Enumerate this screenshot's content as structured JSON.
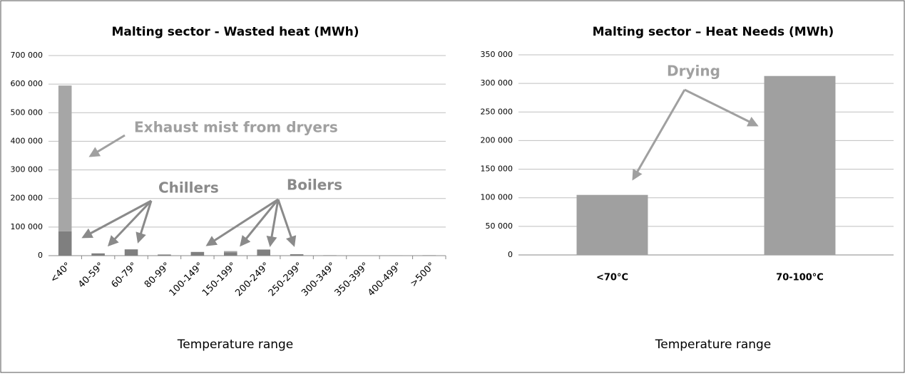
{
  "chart_data": [
    {
      "type": "stacked_bar",
      "title": "Malting sector - Wasted heat (MWh)",
      "x_label": "Temperature range",
      "categories": [
        "<40°",
        "40-59°",
        "60-79°",
        "80-99°",
        "100-149°",
        "150-199°",
        "200-249°",
        "250-299°",
        "300-349°",
        "350-399°",
        "400-499°",
        ">500°"
      ],
      "series": [
        {
          "color": "#7f7f7f",
          "values": [
            85000,
            8000,
            22000,
            4000,
            13000,
            12000,
            20000,
            5000,
            1500,
            0,
            1000,
            1500
          ]
        },
        {
          "color": "#a6a6a6",
          "values": [
            510000,
            0,
            0,
            0,
            0,
            4000,
            2000,
            0,
            0,
            0,
            0,
            0
          ]
        }
      ],
      "annotations": [
        "Exhaust mist from dryers",
        "Chillers",
        "Boilers"
      ],
      "ylim": [
        0,
        700000
      ],
      "yticks": [
        0,
        {
          "value": 100000,
          "label": "100 000"
        },
        {
          "value": 200000,
          "label": "200 000"
        },
        {
          "value": 300000,
          "label": "300 000"
        },
        {
          "value": 400000,
          "label": "400 000"
        },
        {
          "value": 500000,
          "label": "500 000"
        },
        {
          "value": 600000,
          "label": "600 000"
        },
        {
          "value": 700000,
          "label": "700 000"
        }
      ],
      "grid": true,
      "rotate_labels": true
    },
    {
      "type": "bar",
      "title": "Malting sector – Heat Needs (MWh)",
      "x_label": "Temperature range",
      "categories": [
        "<70°C",
        "70-100°C"
      ],
      "values": [
        105000,
        313000
      ],
      "color": "#a0a0a0",
      "annotations": [
        "Drying"
      ],
      "ylim": [
        0,
        350000
      ],
      "yticks": [
        0,
        {
          "value": 50000,
          "label": "50 000"
        },
        {
          "value": 100000,
          "label": "100 000"
        },
        {
          "value": 150000,
          "label": "150 000"
        },
        {
          "value": 200000,
          "label": "200 000"
        },
        {
          "value": 250000,
          "label": "250 000"
        },
        {
          "value": 300000,
          "label": "300 000"
        },
        {
          "value": 350000,
          "label": "350 000"
        }
      ],
      "grid": true,
      "rotate_labels": false
    }
  ]
}
